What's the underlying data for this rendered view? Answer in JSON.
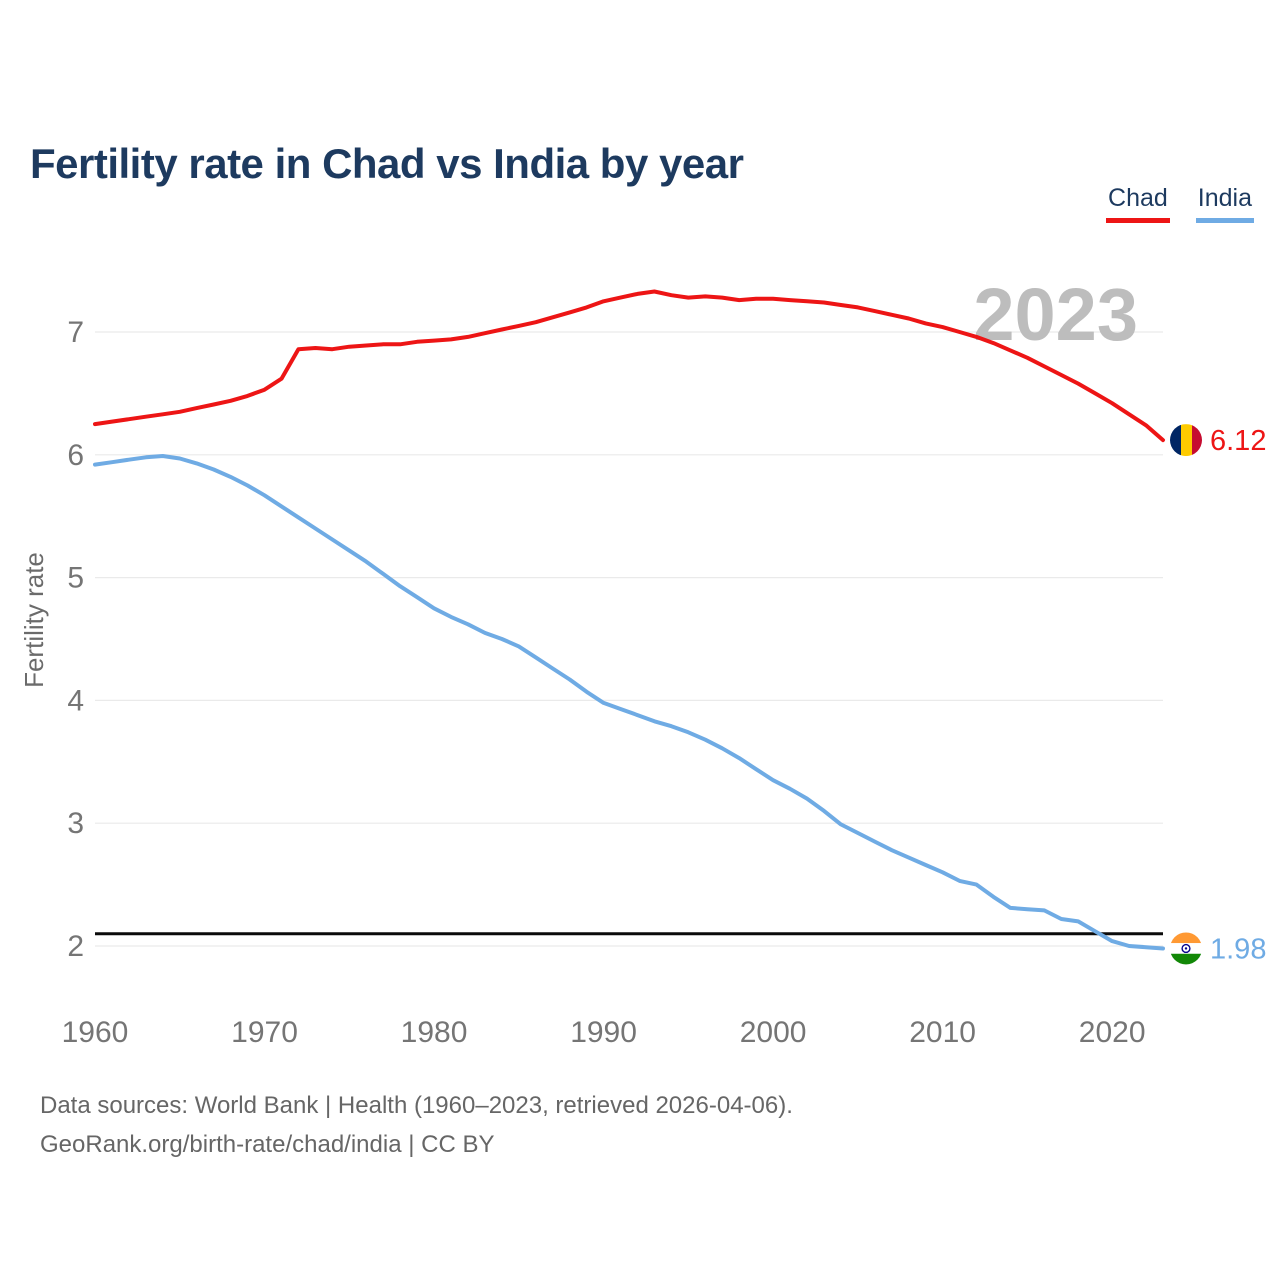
{
  "header": {
    "title": "Fertility rate in Chad vs India by year"
  },
  "legend": {
    "items": [
      {
        "label": "Chad",
        "color": "#ed1515",
        "flag_icon": "chad-flag-icon"
      },
      {
        "label": "India",
        "color": "#6fabe4",
        "flag_icon": "india-flag-icon"
      }
    ]
  },
  "footer": {
    "line1": "Data sources: World Bank | Health (1960–2023, retrieved 2026-04-06).",
    "line2": "GeoRank.org/birth-rate/chad/india | CC BY"
  },
  "chart_data": {
    "type": "line",
    "title": "Fertility rate in Chad vs India by year",
    "xlabel": "",
    "ylabel": "Fertility rate",
    "watermark": "2023",
    "legend_position": "top-right",
    "grid": "horizontal",
    "xlim": [
      1960,
      2023
    ],
    "ylim": [
      1.75,
      7.55
    ],
    "xticks": [
      1960,
      1970,
      1980,
      1990,
      2000,
      2010,
      2020
    ],
    "yticks": [
      2,
      3,
      4,
      5,
      6,
      7
    ],
    "reference_line": {
      "value": 2.1,
      "color": "#0b0b0b",
      "meaning": "replacement-level line shown on chart"
    },
    "years": [
      1960,
      1961,
      1962,
      1963,
      1964,
      1965,
      1966,
      1967,
      1968,
      1969,
      1970,
      1971,
      1972,
      1973,
      1974,
      1975,
      1976,
      1977,
      1978,
      1979,
      1980,
      1981,
      1982,
      1983,
      1984,
      1985,
      1986,
      1987,
      1988,
      1989,
      1990,
      1991,
      1992,
      1993,
      1994,
      1995,
      1996,
      1997,
      1998,
      1999,
      2000,
      2001,
      2002,
      2003,
      2004,
      2005,
      2006,
      2007,
      2008,
      2009,
      2010,
      2011,
      2012,
      2013,
      2014,
      2015,
      2016,
      2017,
      2018,
      2019,
      2020,
      2021,
      2022,
      2023
    ],
    "series": [
      {
        "name": "Chad",
        "color": "#ed1515",
        "end_label": "6.12",
        "flag_icon": "chad-flag-icon",
        "values": [
          6.25,
          6.27,
          6.29,
          6.31,
          6.33,
          6.35,
          6.38,
          6.41,
          6.44,
          6.48,
          6.53,
          6.62,
          6.86,
          6.87,
          6.86,
          6.88,
          6.89,
          6.9,
          6.9,
          6.92,
          6.93,
          6.94,
          6.96,
          6.99,
          7.02,
          7.05,
          7.08,
          7.12,
          7.16,
          7.2,
          7.25,
          7.28,
          7.31,
          7.33,
          7.3,
          7.28,
          7.29,
          7.28,
          7.26,
          7.27,
          7.27,
          7.26,
          7.25,
          7.24,
          7.22,
          7.2,
          7.17,
          7.14,
          7.11,
          7.07,
          7.04,
          7.0,
          6.96,
          6.91,
          6.85,
          6.79,
          6.72,
          6.65,
          6.58,
          6.5,
          6.42,
          6.33,
          6.24,
          6.12
        ]
      },
      {
        "name": "India",
        "color": "#6fabe4",
        "end_label": "1.98",
        "flag_icon": "india-flag-icon",
        "values": [
          5.92,
          5.94,
          5.96,
          5.98,
          5.99,
          5.97,
          5.93,
          5.88,
          5.82,
          5.75,
          5.67,
          5.58,
          5.49,
          5.4,
          5.31,
          5.22,
          5.13,
          5.03,
          4.93,
          4.84,
          4.75,
          4.68,
          4.62,
          4.55,
          4.5,
          4.44,
          4.35,
          4.26,
          4.17,
          4.07,
          3.98,
          3.93,
          3.88,
          3.83,
          3.79,
          3.74,
          3.68,
          3.61,
          3.53,
          3.44,
          3.35,
          3.28,
          3.2,
          3.1,
          2.99,
          2.92,
          2.85,
          2.78,
          2.72,
          2.66,
          2.6,
          2.53,
          2.5,
          2.4,
          2.31,
          2.3,
          2.29,
          2.22,
          2.2,
          2.12,
          2.04,
          2.0,
          1.99,
          1.98
        ]
      }
    ]
  }
}
